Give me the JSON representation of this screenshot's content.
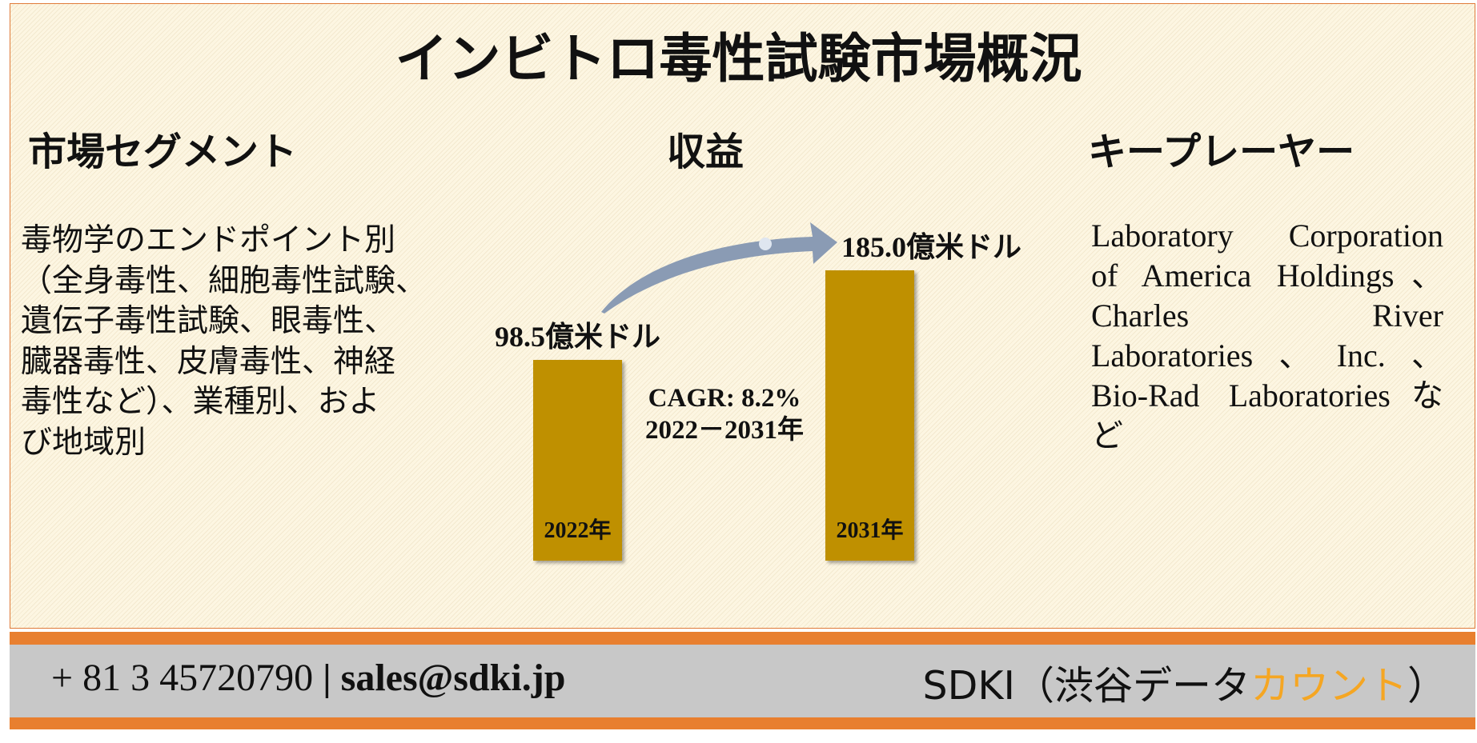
{
  "title": "インビトロ毒性試験市場概況",
  "segments": {
    "heading": "市場セグメント",
    "lines": [
      "毒物学のエンドポイント別",
      "（全身毒性、細胞毒性試験、",
      "遺伝子毒性試験、眼毒性、",
      "臓器毒性、皮膚毒性、神経",
      "毒性など）、業種別、およ",
      "び地域別"
    ]
  },
  "revenue": {
    "heading": "収益",
    "bars": [
      {
        "year": "2022年",
        "value": 98.5,
        "label": "98.5億米ドル"
      },
      {
        "year": "2031年",
        "value": 185.0,
        "label": "185.0億米ドル"
      }
    ],
    "cagr": "CAGR: 8.2%",
    "period": "2022－2031年"
  },
  "key_players": {
    "heading": "キープレーヤー",
    "lines": [
      "Laboratory Corporation",
      "of America Holdings、",
      "Charles River",
      "Laboratories、Inc.、",
      "Bio-Rad Laboratoriesな",
      "ど"
    ]
  },
  "footer": {
    "phone": "+ 81 3 45720790",
    "separator": "|",
    "email": "sales@sdki.jp",
    "brand": "SDKI（渋谷データ",
    "brand_highlight": "カウント",
    "brand_end": "）"
  }
}
